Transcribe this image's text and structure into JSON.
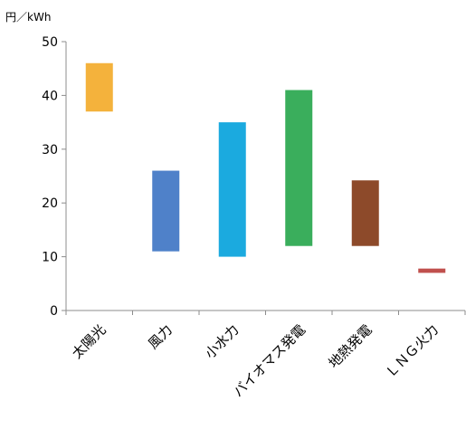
{
  "chart_data": {
    "type": "bar",
    "subtype": "floating-range",
    "unit_label": "円／kWh",
    "ylim": [
      0,
      50
    ],
    "yticks": [
      0,
      10,
      20,
      30,
      40,
      50
    ],
    "grid": false,
    "legend": "none",
    "categories": [
      "太陽光",
      "風力",
      "小水力",
      "バイオマス発電",
      "地熱発電",
      "ＬＮＧ火力"
    ],
    "ranges": [
      {
        "low": 37.0,
        "high": 46.0
      },
      {
        "low": 11.0,
        "high": 26.0
      },
      {
        "low": 10.0,
        "high": 35.0
      },
      {
        "low": 12.0,
        "high": 41.0
      },
      {
        "low": 12.0,
        "high": 24.2
      },
      {
        "low": 7.0,
        "high": 7.8
      }
    ],
    "colors": [
      "#F4B23C",
      "#4F81C9",
      "#1BAADF",
      "#3AAE5C",
      "#8D4A2A",
      "#C0504D"
    ]
  }
}
